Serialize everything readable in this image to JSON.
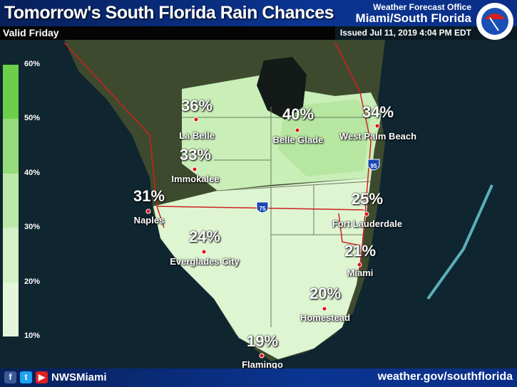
{
  "header": {
    "title": "Tomorrow's South Florida Rain Chances",
    "valid": "Valid Friday",
    "wfo": "Weather Forecast Office",
    "office": "Miami/South Florida",
    "issued": "Issued Jul 11, 2019 4:04 PM EDT",
    "logo_text": "NATIONAL WEATHER SERVICE"
  },
  "legend": {
    "ticks": [
      "60%",
      "50%",
      "40%",
      "30%",
      "20%",
      "10%"
    ],
    "colors": [
      "#6ccf4a",
      "#95dc7a",
      "#bde9a8",
      "#d3f1c6",
      "#e3f6da"
    ]
  },
  "highways": {
    "i75": "75",
    "i95": "95"
  },
  "cities": [
    {
      "name": "La Belle",
      "pct": "36%"
    },
    {
      "name": "Belle Glade",
      "pct": "40%"
    },
    {
      "name": "West Palm Beach",
      "pct": "34%"
    },
    {
      "name": "Immokalee",
      "pct": "33%"
    },
    {
      "name": "Naples",
      "pct": "31%"
    },
    {
      "name": "Fort Lauderdale",
      "pct": "25%"
    },
    {
      "name": "Everglades City",
      "pct": "24%"
    },
    {
      "name": "Miami",
      "pct": "21%"
    },
    {
      "name": "Homestead",
      "pct": "20%"
    },
    {
      "name": "Flamingo",
      "pct": "19%"
    }
  ],
  "footer": {
    "handle": "NWSMiami",
    "url": "weather.gov/southflorida",
    "icons": [
      "facebook-icon",
      "twitter-icon",
      "youtube-icon"
    ]
  }
}
